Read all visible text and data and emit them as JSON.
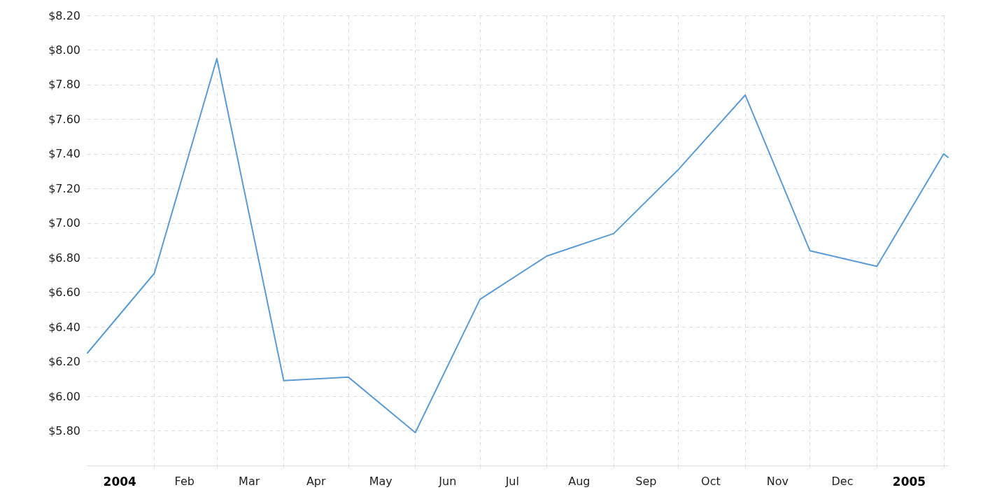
{
  "chart_data": {
    "type": "line",
    "x": [
      "2004-01-01",
      "2004-02-01",
      "2004-03-01",
      "2004-04-01",
      "2004-05-01",
      "2004-06-01",
      "2004-07-01",
      "2004-08-01",
      "2004-09-01",
      "2004-10-01",
      "2004-11-01",
      "2004-12-01",
      "2005-01-01",
      "2005-02-01",
      "2005-02-03"
    ],
    "series": [
      {
        "color": "#5b9bd5",
        "values": [
          6.25,
          6.71,
          7.95,
          6.09,
          6.11,
          5.79,
          6.56,
          6.81,
          6.94,
          7.31,
          7.74,
          6.84,
          6.75,
          7.4,
          7.38
        ]
      }
    ],
    "xlim": [
      "2004-01-01",
      "2005-02-03"
    ],
    "xticks": [
      {
        "value": "2004-02-01",
        "label": null
      },
      {
        "value": "2004-03-01",
        "label": null
      },
      {
        "value": "2004-04-01",
        "label": null
      },
      {
        "value": "2004-05-01",
        "label": null
      },
      {
        "value": "2004-06-01",
        "label": null
      },
      {
        "value": "2004-07-01",
        "label": null
      },
      {
        "value": "2004-08-01",
        "label": null
      },
      {
        "value": "2004-09-01",
        "label": null
      },
      {
        "value": "2004-10-01",
        "label": null
      },
      {
        "value": "2004-11-01",
        "label": null
      },
      {
        "value": "2004-12-01",
        "label": null
      },
      {
        "value": "2005-01-01",
        "label": null
      },
      {
        "value": "2005-02-01",
        "label": null
      },
      {
        "value": "2004-01-16",
        "label": "2004"
      },
      {
        "value": "2004-02-15",
        "label": "Feb"
      },
      {
        "value": "2004-03-16",
        "label": "Mar"
      },
      {
        "value": "2004-04-16",
        "label": "Apr"
      },
      {
        "value": "2004-05-16",
        "label": "May"
      },
      {
        "value": "2004-06-16",
        "label": "Jun"
      },
      {
        "value": "2004-07-16",
        "label": "Jul"
      },
      {
        "value": "2004-08-16",
        "label": "Aug"
      },
      {
        "value": "2004-09-16",
        "label": "Sep"
      },
      {
        "value": "2004-10-16",
        "label": "Oct"
      },
      {
        "value": "2004-11-16",
        "label": "Nov"
      },
      {
        "value": "2004-12-16",
        "label": "Dec"
      },
      {
        "value": "2005-01-16",
        "label": "2005"
      }
    ],
    "ylim": [
      5.6,
      8.2
    ],
    "yticks": [
      {
        "value": 5.6,
        "label": null
      },
      {
        "value": 5.8,
        "label": "$5.80"
      },
      {
        "value": 6.0,
        "label": "$6.00"
      },
      {
        "value": 6.2,
        "label": "$6.20"
      },
      {
        "value": 6.4,
        "label": "$6.40"
      },
      {
        "value": 6.6,
        "label": "$6.60"
      },
      {
        "value": 6.8,
        "label": "$6.80"
      },
      {
        "value": 7.0,
        "label": "$7.00"
      },
      {
        "value": 7.2,
        "label": "$7.20"
      },
      {
        "value": 7.4,
        "label": "$7.40"
      },
      {
        "value": 7.6,
        "label": "$7.60"
      },
      {
        "value": 7.8,
        "label": "$7.80"
      },
      {
        "value": 8.0,
        "label": "$8.00"
      },
      {
        "value": 8.2,
        "label": "$8.20"
      }
    ],
    "grid": true,
    "marker": "none",
    "line_style": "solid"
  }
}
